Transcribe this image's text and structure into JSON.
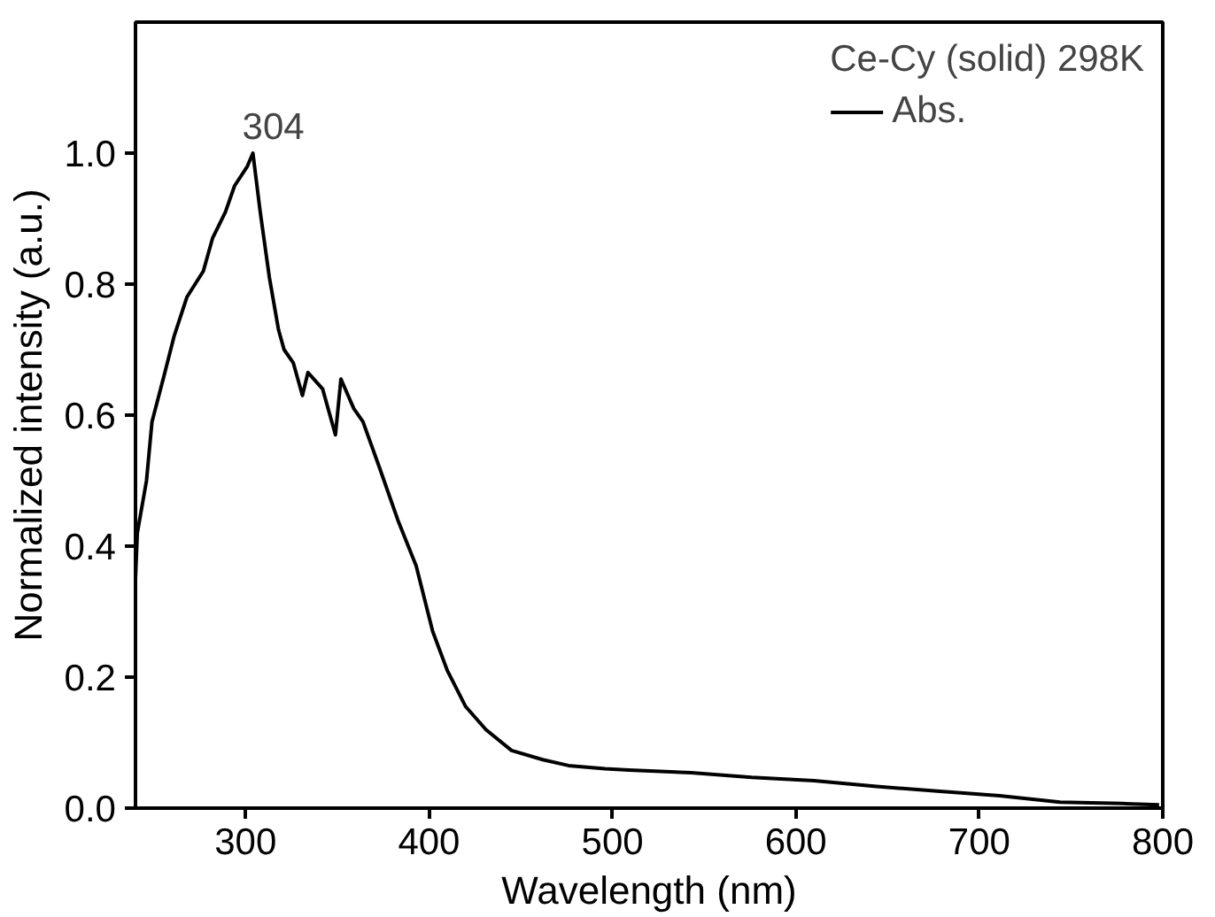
{
  "chart_data": {
    "type": "line",
    "xlabel": "Wavelength (nm)",
    "ylabel": "Normalized intensity (a.u.)",
    "legend_title": "Ce-Cy (solid) 298K",
    "series": [
      {
        "name": "Abs.",
        "color": "#000000",
        "x": [
          240,
          241,
          246,
          249,
          256,
          261,
          268,
          277,
          282,
          289,
          294,
          301,
          304,
          308,
          313,
          318,
          321,
          326,
          331,
          334,
          342,
          349,
          352,
          359,
          364,
          373,
          383,
          393,
          402,
          410,
          420,
          431,
          445,
          462,
          476,
          496,
          509,
          543,
          576,
          610,
          644,
          677,
          711,
          744,
          778,
          798
        ],
        "values": [
          0.35,
          0.42,
          0.5,
          0.59,
          0.665,
          0.72,
          0.78,
          0.82,
          0.87,
          0.91,
          0.95,
          0.98,
          1.0,
          0.91,
          0.81,
          0.73,
          0.7,
          0.68,
          0.63,
          0.665,
          0.64,
          0.57,
          0.655,
          0.61,
          0.59,
          0.52,
          0.44,
          0.37,
          0.27,
          0.21,
          0.155,
          0.12,
          0.088,
          0.074,
          0.065,
          0.06,
          0.058,
          0.054,
          0.047,
          0.042,
          0.033,
          0.026,
          0.019,
          0.009,
          0.007,
          0.005
        ]
      }
    ],
    "annotations": [
      {
        "text": "304",
        "x": 304,
        "y": 1.0
      }
    ],
    "xlim": [
      240,
      800
    ],
    "xticks": [
      300,
      400,
      500,
      600,
      700,
      800
    ],
    "ylim": [
      0,
      1.2
    ],
    "yticks": [
      {
        "value": 0,
        "label": "0.0"
      },
      0.2,
      0.4,
      0.6,
      0.8,
      {
        "value": 1,
        "label": "1.0"
      }
    ],
    "legend": "top right",
    "grid": false,
    "line_style": "solid",
    "marker": "none"
  }
}
